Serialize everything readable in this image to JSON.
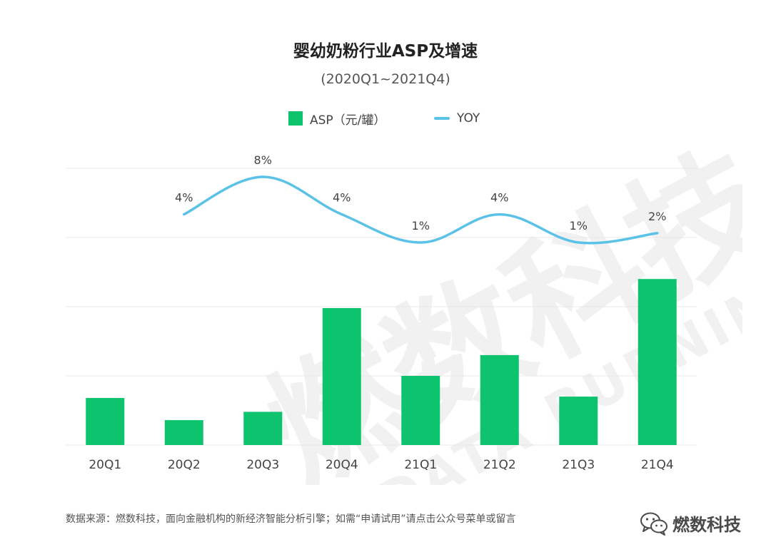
{
  "header": {
    "title": "婴幼奶粉行业ASP及增速",
    "subtitle": "(2020Q1~2021Q4)"
  },
  "legend": {
    "bar_label": "ASP（元/罐）",
    "line_label": "YOY"
  },
  "colors": {
    "bar": "#0dc36d",
    "line": "#5bc2e7",
    "grid": "#e8e8e8"
  },
  "chart_data": {
    "type": "bar",
    "categories": [
      "20Q1",
      "20Q2",
      "20Q3",
      "20Q4",
      "21Q1",
      "21Q2",
      "21Q3",
      "21Q4"
    ],
    "series": [
      {
        "name": "ASP（元/罐）",
        "type": "bar",
        "axis": "left",
        "values": [
          0.34,
          0.18,
          0.24,
          0.99,
          0.5,
          0.65,
          0.35,
          1.2
        ]
      },
      {
        "name": "YOY",
        "type": "line",
        "axis": "right",
        "values": [
          null,
          4,
          8,
          4,
          1,
          4,
          1,
          2
        ],
        "labels": [
          "",
          "4%",
          "8%",
          "4%",
          "1%",
          "4%",
          "1%",
          "2%"
        ]
      }
    ],
    "ylim": [
      0,
      2
    ],
    "grid": true,
    "legend_position": "top-center",
    "smooth_line": true
  },
  "footer": {
    "source": "数据来源：燃数科技，面向金融机构的新经济智能分析引擎；如需“申请试用”请点击公众号菜单或留言",
    "brand": "燃数科技"
  },
  "watermark": {
    "main": "燃数科技",
    "sub": "DATA BURNING"
  }
}
